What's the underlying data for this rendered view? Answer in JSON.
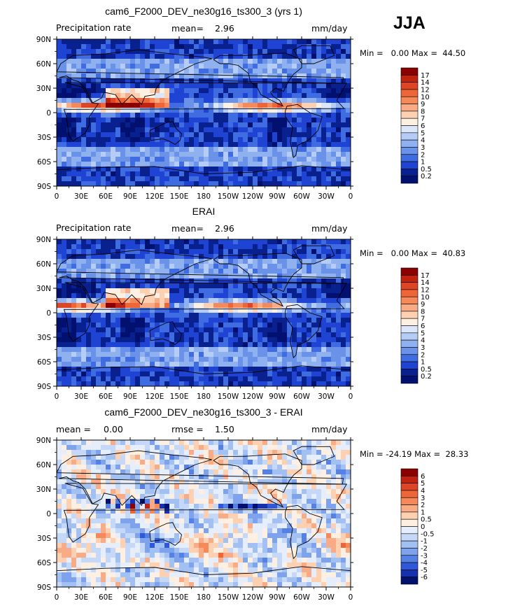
{
  "season_label": "JJA",
  "panels": [
    {
      "title": "cam6_F2000_DEV_ne30g16_ts300_3 (yrs 1)",
      "left_label": "Precipitation rate",
      "stat1_label": "mean=",
      "stat1_value": "2.96",
      "stat2_label": "",
      "stat2_value": "",
      "units": "mm/day",
      "min_max": "Min =   0.00 Max =  44.50",
      "colorbar_levels": [
        "17",
        "14",
        "12",
        "10",
        "9",
        "8",
        "7",
        "6",
        "5",
        "4",
        "3",
        "2",
        "1",
        "0.5",
        "0.2"
      ],
      "colorbar_colors": [
        "#8b0000",
        "#c0230f",
        "#de4526",
        "#ee6638",
        "#f5895a",
        "#f8ab85",
        "#fcd0b0",
        "#fdf0e3",
        "#dbe6fb",
        "#b5cdf6",
        "#8fb1ef",
        "#6a92e8",
        "#3f6ce0",
        "#1f43d2",
        "#08218f",
        "#021170"
      ],
      "map_type": "sequential"
    },
    {
      "title": "ERAI",
      "left_label": "Precipitation rate",
      "stat1_label": "mean=",
      "stat1_value": "2.96",
      "stat2_label": "",
      "stat2_value": "",
      "units": "mm/day",
      "min_max": "Min =   0.00 Max =  40.83",
      "colorbar_levels": [
        "17",
        "14",
        "12",
        "10",
        "9",
        "8",
        "7",
        "6",
        "5",
        "4",
        "3",
        "2",
        "1",
        "0.5",
        "0.2"
      ],
      "colorbar_colors": [
        "#8b0000",
        "#c0230f",
        "#de4526",
        "#ee6638",
        "#f5895a",
        "#f8ab85",
        "#fcd0b0",
        "#fdf0e3",
        "#dbe6fb",
        "#b5cdf6",
        "#8fb1ef",
        "#6a92e8",
        "#3f6ce0",
        "#1f43d2",
        "#08218f",
        "#021170"
      ],
      "map_type": "sequential"
    },
    {
      "title": "cam6_F2000_DEV_ne30g16_ts300_3 - ERAI",
      "left_label": "",
      "stat1_label": "mean =",
      "stat1_value": "0.00",
      "stat2_label": "rmse =",
      "stat2_value": "1.50",
      "units": "mm/day",
      "min_max": "Min = -24.19 Max =  28.33",
      "colorbar_levels": [
        "6",
        "5",
        "4",
        "3",
        "2",
        "1",
        "0.5",
        "0",
        "-0.5",
        "-1",
        "-2",
        "-3",
        "-4",
        "-5",
        "-6"
      ],
      "colorbar_colors": [
        "#8b0000",
        "#c0230f",
        "#de4526",
        "#ee6638",
        "#f5895a",
        "#f8ab85",
        "#fcd0b0",
        "#fdf0e3",
        "#e6eefc",
        "#c6d8f8",
        "#a3c0f2",
        "#7ea3ec",
        "#5580e4",
        "#2f58d8",
        "#1530b0",
        "#02116e"
      ],
      "map_type": "diverging"
    }
  ],
  "chart_data": [
    {
      "type": "heatmap",
      "title": "cam6_F2000_DEV_ne30g16_ts300_3 (yrs 1)",
      "variable": "Precipitation rate",
      "units": "mm/day",
      "mean": 2.96,
      "min": 0.0,
      "max": 44.5,
      "x_ticks": [
        "0",
        "30E",
        "60E",
        "90E",
        "120E",
        "150E",
        "180",
        "150W",
        "120W",
        "90W",
        "60W",
        "30W",
        "0"
      ],
      "y_ticks": [
        "90N",
        "60N",
        "30N",
        "0",
        "30S",
        "60S",
        "90S"
      ],
      "xlim": [
        0,
        360
      ],
      "ylim": [
        -90,
        90
      ],
      "levels": [
        0.2,
        0.5,
        1,
        2,
        3,
        4,
        5,
        6,
        7,
        8,
        9,
        10,
        12,
        14,
        17
      ]
    },
    {
      "type": "heatmap",
      "title": "ERAI",
      "variable": "Precipitation rate",
      "units": "mm/day",
      "mean": 2.96,
      "min": 0.0,
      "max": 40.83,
      "x_ticks": [
        "0",
        "30E",
        "60E",
        "90E",
        "120E",
        "150E",
        "180",
        "150W",
        "120W",
        "90W",
        "60W",
        "30W",
        "0"
      ],
      "y_ticks": [
        "90N",
        "60N",
        "30N",
        "0",
        "30S",
        "60S",
        "90S"
      ],
      "xlim": [
        0,
        360
      ],
      "ylim": [
        -90,
        90
      ],
      "levels": [
        0.2,
        0.5,
        1,
        2,
        3,
        4,
        5,
        6,
        7,
        8,
        9,
        10,
        12,
        14,
        17
      ]
    },
    {
      "type": "heatmap",
      "title": "cam6_F2000_DEV_ne30g16_ts300_3 - ERAI",
      "units": "mm/day",
      "mean": 0.0,
      "rmse": 1.5,
      "min": -24.19,
      "max": 28.33,
      "x_ticks": [
        "0",
        "30E",
        "60E",
        "90E",
        "120E",
        "150E",
        "180",
        "150W",
        "120W",
        "90W",
        "60W",
        "30W",
        "0"
      ],
      "y_ticks": [
        "90N",
        "60N",
        "30N",
        "0",
        "30S",
        "60S",
        "90S"
      ],
      "xlim": [
        0,
        360
      ],
      "ylim": [
        -90,
        90
      ],
      "levels": [
        -6,
        -5,
        -4,
        -3,
        -2,
        -1,
        -0.5,
        0,
        0.5,
        1,
        2,
        3,
        4,
        5,
        6
      ]
    }
  ]
}
